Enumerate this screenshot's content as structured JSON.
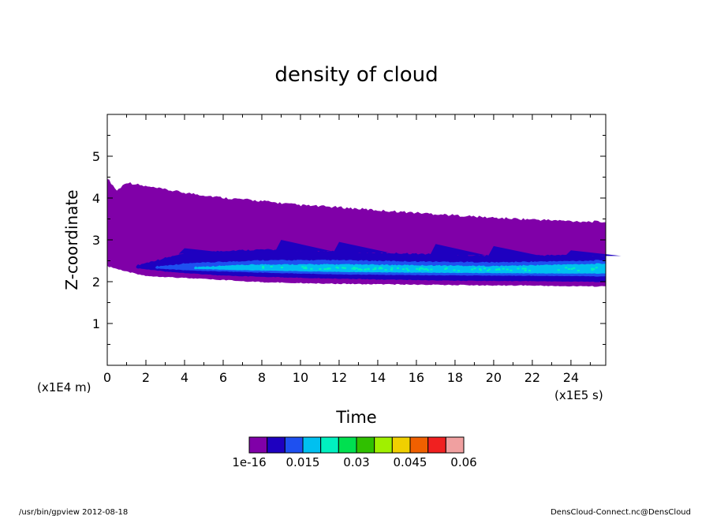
{
  "chart_data": {
    "type": "heatmap",
    "title": "density of cloud",
    "xlabel": "Time",
    "ylabel": "Z-coordinate",
    "x_unit": "(x1E5 s)",
    "y_unit": "(x1E4 m)",
    "xlim": [
      0,
      25.8
    ],
    "ylim": [
      0,
      6
    ],
    "x_ticks": [
      0,
      2,
      4,
      6,
      8,
      10,
      12,
      14,
      16,
      18,
      20,
      22,
      24
    ],
    "y_ticks": [
      1,
      2,
      3,
      4,
      5
    ],
    "colorbar": {
      "levels": [
        1e-16,
        0.005,
        0.01,
        0.015,
        0.02,
        0.025,
        0.03,
        0.035,
        0.04,
        0.045,
        0.05,
        0.055,
        0.06
      ],
      "colors": [
        "#8000a8",
        "#1e00c0",
        "#1e50f0",
        "#00c0f0",
        "#00f0c0",
        "#00e050",
        "#30c000",
        "#a0f000",
        "#f0d000",
        "#f06000",
        "#f02020",
        "#f0a0a0"
      ],
      "tick_labels": [
        "1e-16",
        "0.015",
        "0.03",
        "0.045",
        "0.06"
      ],
      "tick_values": [
        1e-16,
        0.015,
        0.03,
        0.045,
        0.06
      ]
    },
    "regions": {
      "cloud_top": [
        [
          0,
          4.45
        ],
        [
          0.5,
          4.15
        ],
        [
          1,
          4.35
        ],
        [
          2,
          4.25
        ],
        [
          4,
          4.1
        ],
        [
          6,
          3.98
        ],
        [
          8,
          3.9
        ],
        [
          10,
          3.8
        ],
        [
          12,
          3.75
        ],
        [
          14,
          3.68
        ],
        [
          16,
          3.62
        ],
        [
          18,
          3.56
        ],
        [
          20,
          3.5
        ],
        [
          22,
          3.46
        ],
        [
          24,
          3.42
        ],
        [
          25.8,
          3.4
        ]
      ],
      "cloud_bottom": [
        [
          0,
          2.38
        ],
        [
          1,
          2.25
        ],
        [
          2,
          2.15
        ],
        [
          4,
          2.1
        ],
        [
          6,
          2.05
        ],
        [
          8,
          2.0
        ],
        [
          10,
          1.98
        ],
        [
          12,
          1.96
        ],
        [
          14,
          1.95
        ],
        [
          16,
          1.94
        ],
        [
          18,
          1.93
        ],
        [
          20,
          1.92
        ],
        [
          22,
          1.92
        ],
        [
          24,
          1.9
        ],
        [
          25.8,
          1.9
        ]
      ],
      "layer_blue_top": [
        [
          1.5,
          2.37
        ],
        [
          3,
          2.55
        ],
        [
          4,
          2.65
        ],
        [
          6,
          2.72
        ],
        [
          8,
          2.75
        ],
        [
          12,
          2.7
        ],
        [
          16,
          2.65
        ],
        [
          20,
          2.6
        ],
        [
          24,
          2.62
        ],
        [
          25.8,
          2.6
        ]
      ],
      "layer_blue_bottom": [
        [
          1.5,
          2.33
        ],
        [
          3,
          2.25
        ],
        [
          6,
          2.15
        ],
        [
          10,
          2.1
        ],
        [
          14,
          2.06
        ],
        [
          18,
          2.03
        ],
        [
          22,
          2.02
        ],
        [
          25.8,
          2.0
        ]
      ],
      "layer_light_top": [
        [
          2.5,
          2.35
        ],
        [
          4,
          2.42
        ],
        [
          8,
          2.5
        ],
        [
          12,
          2.5
        ],
        [
          16,
          2.47
        ],
        [
          20,
          2.45
        ],
        [
          24,
          2.48
        ],
        [
          25.8,
          2.5
        ]
      ],
      "layer_light_bottom": [
        [
          2.5,
          2.32
        ],
        [
          4,
          2.28
        ],
        [
          8,
          2.22
        ],
        [
          12,
          2.18
        ],
        [
          16,
          2.16
        ],
        [
          20,
          2.15
        ],
        [
          24,
          2.14
        ],
        [
          25.8,
          2.13
        ]
      ],
      "layer_cyan_top": [
        [
          4.5,
          2.34
        ],
        [
          8,
          2.4
        ],
        [
          12,
          2.4
        ],
        [
          16,
          2.38
        ],
        [
          20,
          2.36
        ],
        [
          24,
          2.4
        ],
        [
          25.8,
          2.42
        ]
      ],
      "layer_cyan_bottom": [
        [
          4.5,
          2.31
        ],
        [
          8,
          2.27
        ],
        [
          12,
          2.24
        ],
        [
          16,
          2.22
        ],
        [
          20,
          2.21
        ],
        [
          24,
          2.2
        ],
        [
          25.8,
          2.2
        ]
      ],
      "wave_crests": [
        [
          4,
          2.8
        ],
        [
          9,
          3.0
        ],
        [
          12,
          2.95
        ],
        [
          17,
          2.9
        ],
        [
          20,
          2.85
        ],
        [
          24,
          2.75
        ]
      ]
    }
  },
  "footer": {
    "left": "/usr/bin/gpview  2012-08-18",
    "right": "DensCloud-Connect.nc@DensCloud"
  }
}
